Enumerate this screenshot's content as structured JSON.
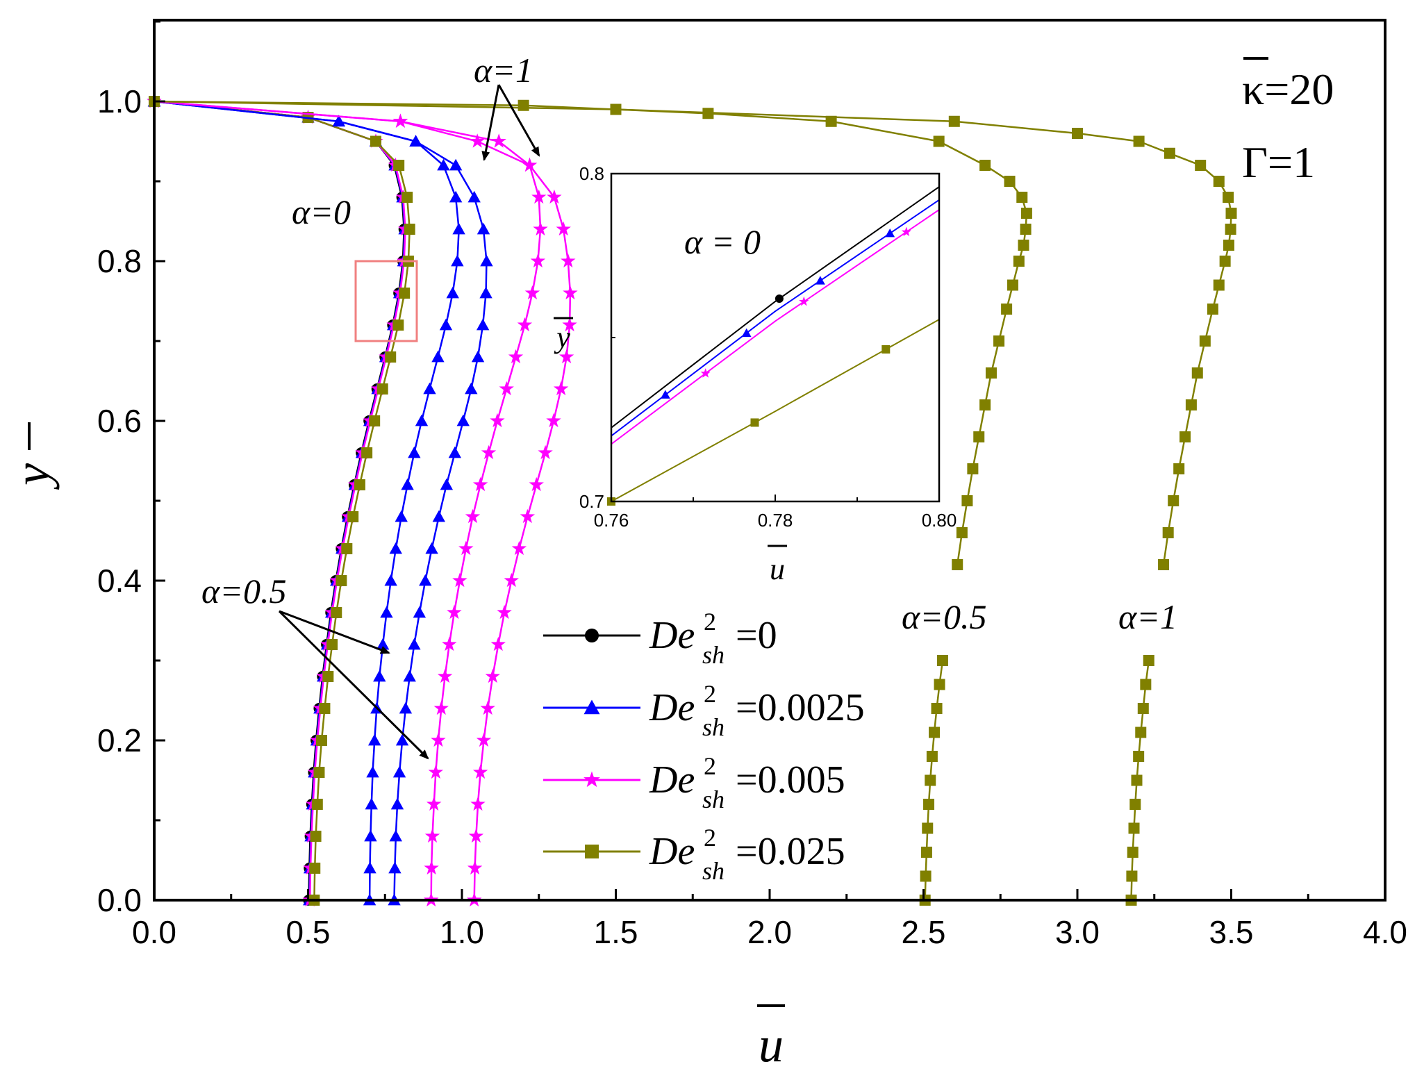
{
  "chart_data": {
    "type": "line",
    "xlabel": "u",
    "ylabel": "y",
    "xlim": [
      0,
      4.0
    ],
    "ylim": [
      0,
      1.1
    ],
    "x_ticks": [
      "0.0",
      "0.5",
      "1.0",
      "1.5",
      "2.0",
      "2.5",
      "3.0",
      "3.5",
      "4.0"
    ],
    "y_ticks": [
      "0.0",
      "0.2",
      "0.4",
      "0.6",
      "0.8",
      "1.0"
    ],
    "params": {
      "kappa": "κ=20",
      "gamma": "Γ=1"
    },
    "annotations": {
      "alpha0": "α=0",
      "alpha05": "α=0.5",
      "alpha1": "α=1",
      "alpha05_right": "α=0.5",
      "alpha1_right": "α=1"
    },
    "legend": [
      {
        "de": "De",
        "sup": "2",
        "sub": "sh",
        "value": "=0",
        "color": "#000000",
        "marker": "circle"
      },
      {
        "de": "De",
        "sup": "2",
        "sub": "sh",
        "value": "=0.0025",
        "color": "#0000ff",
        "marker": "triangle"
      },
      {
        "de": "De",
        "sup": "2",
        "sub": "sh",
        "value": "=0.005",
        "color": "#ff00ff",
        "marker": "star"
      },
      {
        "de": "De",
        "sup": "2",
        "sub": "sh",
        "value": "=0.025",
        "color": "#808000",
        "marker": "square"
      }
    ],
    "series": [
      {
        "name": "De2sh=0, alpha=0",
        "color": "#000000",
        "marker": "circle",
        "x": [
          0.502,
          0.504,
          0.507,
          0.512,
          0.518,
          0.526,
          0.536,
          0.547,
          0.56,
          0.574,
          0.59,
          0.608,
          0.628,
          0.65,
          0.673,
          0.698,
          0.724,
          0.75,
          0.775,
          0.795,
          0.808,
          0.812,
          0.805,
          0.78,
          0.72,
          0.5,
          0.0
        ],
        "y": [
          0.0,
          0.04,
          0.08,
          0.12,
          0.16,
          0.2,
          0.24,
          0.28,
          0.32,
          0.36,
          0.4,
          0.44,
          0.48,
          0.52,
          0.56,
          0.6,
          0.64,
          0.68,
          0.72,
          0.76,
          0.8,
          0.84,
          0.88,
          0.92,
          0.95,
          0.98,
          1.0
        ]
      },
      {
        "name": "De2sh=0.0025, alpha=0",
        "color": "#0000ff",
        "marker": "triangle",
        "x": [
          0.504,
          0.506,
          0.509,
          0.514,
          0.52,
          0.528,
          0.538,
          0.549,
          0.562,
          0.576,
          0.592,
          0.61,
          0.63,
          0.652,
          0.675,
          0.7,
          0.726,
          0.752,
          0.777,
          0.797,
          0.81,
          0.814,
          0.807,
          0.782,
          0.72,
          0.5,
          0.0
        ],
        "y": [
          0.0,
          0.04,
          0.08,
          0.12,
          0.16,
          0.2,
          0.24,
          0.28,
          0.32,
          0.36,
          0.4,
          0.44,
          0.48,
          0.52,
          0.56,
          0.6,
          0.64,
          0.68,
          0.72,
          0.76,
          0.8,
          0.84,
          0.88,
          0.92,
          0.95,
          0.98,
          1.0
        ]
      },
      {
        "name": "De2sh=0.005, alpha=0",
        "color": "#ff00ff",
        "marker": "star",
        "x": [
          0.506,
          0.508,
          0.511,
          0.516,
          0.522,
          0.53,
          0.54,
          0.551,
          0.564,
          0.578,
          0.594,
          0.612,
          0.632,
          0.654,
          0.677,
          0.702,
          0.728,
          0.754,
          0.779,
          0.799,
          0.812,
          0.816,
          0.809,
          0.784,
          0.72,
          0.5,
          0.0
        ],
        "y": [
          0.0,
          0.04,
          0.08,
          0.12,
          0.16,
          0.2,
          0.24,
          0.28,
          0.32,
          0.36,
          0.4,
          0.44,
          0.48,
          0.52,
          0.56,
          0.6,
          0.64,
          0.68,
          0.72,
          0.76,
          0.8,
          0.84,
          0.88,
          0.92,
          0.95,
          0.98,
          1.0
        ]
      },
      {
        "name": "De2sh=0.025, alpha=0",
        "color": "#808000",
        "marker": "square",
        "x": [
          0.52,
          0.522,
          0.525,
          0.53,
          0.536,
          0.544,
          0.554,
          0.565,
          0.578,
          0.592,
          0.608,
          0.626,
          0.646,
          0.668,
          0.691,
          0.716,
          0.742,
          0.768,
          0.793,
          0.813,
          0.826,
          0.83,
          0.822,
          0.795,
          0.72,
          0.5,
          0.0
        ],
        "y": [
          0.0,
          0.04,
          0.08,
          0.12,
          0.16,
          0.2,
          0.24,
          0.28,
          0.32,
          0.36,
          0.4,
          0.44,
          0.48,
          0.52,
          0.56,
          0.6,
          0.64,
          0.68,
          0.72,
          0.76,
          0.8,
          0.84,
          0.88,
          0.92,
          0.95,
          0.98,
          1.0
        ]
      },
      {
        "name": "De2sh=0.0025, alpha=0.5",
        "color": "#0000ff",
        "marker": "triangle",
        "x": [
          0.7,
          0.701,
          0.703,
          0.706,
          0.71,
          0.716,
          0.723,
          0.732,
          0.743,
          0.755,
          0.769,
          0.785,
          0.803,
          0.823,
          0.845,
          0.869,
          0.895,
          0.922,
          0.948,
          0.97,
          0.985,
          0.99,
          0.98,
          0.94,
          0.85,
          0.6,
          0.0
        ],
        "y": [
          0.0,
          0.04,
          0.08,
          0.12,
          0.16,
          0.2,
          0.24,
          0.28,
          0.32,
          0.36,
          0.4,
          0.44,
          0.48,
          0.52,
          0.56,
          0.6,
          0.64,
          0.68,
          0.72,
          0.76,
          0.8,
          0.84,
          0.88,
          0.92,
          0.95,
          0.975,
          1.0
        ]
      },
      {
        "name": "De2sh=0.0025, alpha=1",
        "color": "#0000ff",
        "marker": "triangle",
        "x": [
          0.78,
          0.782,
          0.785,
          0.79,
          0.797,
          0.806,
          0.817,
          0.83,
          0.845,
          0.862,
          0.881,
          0.902,
          0.925,
          0.95,
          0.977,
          1.004,
          1.03,
          1.052,
          1.068,
          1.078,
          1.08,
          1.07,
          1.04,
          0.98,
          0.85,
          0.6,
          0.0
        ],
        "y": [
          0.0,
          0.04,
          0.08,
          0.12,
          0.16,
          0.2,
          0.24,
          0.28,
          0.32,
          0.36,
          0.4,
          0.44,
          0.48,
          0.52,
          0.56,
          0.6,
          0.64,
          0.68,
          0.72,
          0.76,
          0.8,
          0.84,
          0.88,
          0.92,
          0.95,
          0.975,
          1.0
        ]
      },
      {
        "name": "De2sh=0.005, alpha=0.5",
        "color": "#ff00ff",
        "marker": "star",
        "x": [
          0.9,
          0.901,
          0.904,
          0.909,
          0.915,
          0.923,
          0.933,
          0.945,
          0.959,
          0.975,
          0.993,
          1.013,
          1.035,
          1.06,
          1.087,
          1.115,
          1.145,
          1.175,
          1.204,
          1.229,
          1.247,
          1.255,
          1.25,
          1.22,
          1.12,
          0.8,
          0.0
        ],
        "y": [
          0.0,
          0.04,
          0.08,
          0.12,
          0.16,
          0.2,
          0.24,
          0.28,
          0.32,
          0.36,
          0.4,
          0.44,
          0.48,
          0.52,
          0.56,
          0.6,
          0.64,
          0.68,
          0.72,
          0.76,
          0.8,
          0.84,
          0.88,
          0.92,
          0.95,
          0.975,
          1.0
        ]
      },
      {
        "name": "De2sh=0.005, alpha=1",
        "color": "#ff00ff",
        "marker": "star",
        "x": [
          1.04,
          1.042,
          1.046,
          1.052,
          1.06,
          1.071,
          1.084,
          1.1,
          1.118,
          1.138,
          1.161,
          1.186,
          1.213,
          1.242,
          1.271,
          1.298,
          1.322,
          1.34,
          1.35,
          1.352,
          1.345,
          1.33,
          1.3,
          1.22,
          1.05,
          0.8,
          0.0
        ],
        "y": [
          0.0,
          0.04,
          0.08,
          0.12,
          0.16,
          0.2,
          0.24,
          0.28,
          0.32,
          0.36,
          0.4,
          0.44,
          0.48,
          0.52,
          0.56,
          0.6,
          0.64,
          0.68,
          0.72,
          0.76,
          0.8,
          0.84,
          0.88,
          0.92,
          0.95,
          0.975,
          1.0
        ]
      },
      {
        "name": "De2sh=0.025, alpha=0.5 (lower)",
        "color": "#808000",
        "marker": "square",
        "x": [
          2.505,
          2.507,
          2.51,
          2.513,
          2.517,
          2.522,
          2.528,
          2.535,
          2.543,
          2.552,
          2.562
        ],
        "y": [
          0.0,
          0.03,
          0.06,
          0.09,
          0.12,
          0.15,
          0.18,
          0.21,
          0.24,
          0.27,
          0.3
        ]
      },
      {
        "name": "De2sh=0.025, alpha=0.5 (upper)",
        "color": "#808000",
        "marker": "square",
        "x": [
          2.61,
          2.625,
          2.642,
          2.66,
          2.68,
          2.7,
          2.72,
          2.745,
          2.77,
          2.79,
          2.81,
          2.825,
          2.832,
          2.835,
          2.82,
          2.78,
          2.7,
          2.55,
          2.2,
          1.8,
          1.2,
          0.0
        ],
        "y": [
          0.42,
          0.46,
          0.5,
          0.54,
          0.58,
          0.62,
          0.66,
          0.7,
          0.74,
          0.77,
          0.8,
          0.82,
          0.84,
          0.86,
          0.88,
          0.9,
          0.92,
          0.95,
          0.975,
          0.985,
          0.995,
          1.0
        ]
      },
      {
        "name": "De2sh=0.025, alpha=1 (lower)",
        "color": "#808000",
        "marker": "square",
        "x": [
          3.175,
          3.177,
          3.18,
          3.184,
          3.188,
          3.193,
          3.199,
          3.206,
          3.214,
          3.222,
          3.232
        ],
        "y": [
          0.0,
          0.03,
          0.06,
          0.09,
          0.12,
          0.15,
          0.18,
          0.21,
          0.24,
          0.27,
          0.3
        ]
      },
      {
        "name": "De2sh=0.025, alpha=1 (upper)",
        "color": "#808000",
        "marker": "square",
        "x": [
          3.28,
          3.295,
          3.312,
          3.33,
          3.35,
          3.37,
          3.39,
          3.415,
          3.44,
          3.46,
          3.48,
          3.492,
          3.498,
          3.5,
          3.49,
          3.46,
          3.4,
          3.3,
          3.2,
          3.0,
          2.6,
          1.5,
          0.0
        ],
        "y": [
          0.42,
          0.46,
          0.5,
          0.54,
          0.58,
          0.62,
          0.66,
          0.7,
          0.74,
          0.77,
          0.8,
          0.82,
          0.84,
          0.86,
          0.88,
          0.9,
          0.92,
          0.935,
          0.95,
          0.96,
          0.975,
          0.99,
          1.0
        ]
      }
    ],
    "inset": {
      "xlim": [
        0.76,
        0.8
      ],
      "ylim": [
        0.7,
        0.8
      ],
      "x_ticks": [
        "0.76",
        "0.78",
        "0.80"
      ],
      "y_ticks": [
        "0.7",
        "0.8"
      ],
      "xlabel": "u",
      "ylabel": "y",
      "label": "α = 0",
      "series": [
        {
          "name": "De2sh=0",
          "color": "#000000",
          "marker": "circle",
          "x": [
            0.76,
            0.78,
            0.8
          ],
          "y": [
            0.7225,
            0.761,
            0.796
          ],
          "marks_x": [
            0.7805
          ]
        },
        {
          "name": "De2sh=0.0025",
          "color": "#0000ff",
          "marker": "triangle",
          "x": [
            0.76,
            0.78,
            0.8
          ],
          "y": [
            0.72,
            0.758,
            0.792
          ],
          "marks_x": [
            0.7666,
            0.7765,
            0.7855,
            0.794
          ]
        },
        {
          "name": "De2sh=0.005",
          "color": "#ff00ff",
          "marker": "star",
          "x": [
            0.76,
            0.78,
            0.8
          ],
          "y": [
            0.7175,
            0.755,
            0.789
          ],
          "marks_x": [
            0.7715,
            0.7835,
            0.796
          ]
        },
        {
          "name": "De2sh=0.025",
          "color": "#808000",
          "marker": "square",
          "x": [
            0.76,
            0.78,
            0.8
          ],
          "y": [
            0.7,
            0.7275,
            0.7555
          ],
          "marks_x": [
            0.76,
            0.7775,
            0.7935
          ]
        }
      ]
    }
  }
}
